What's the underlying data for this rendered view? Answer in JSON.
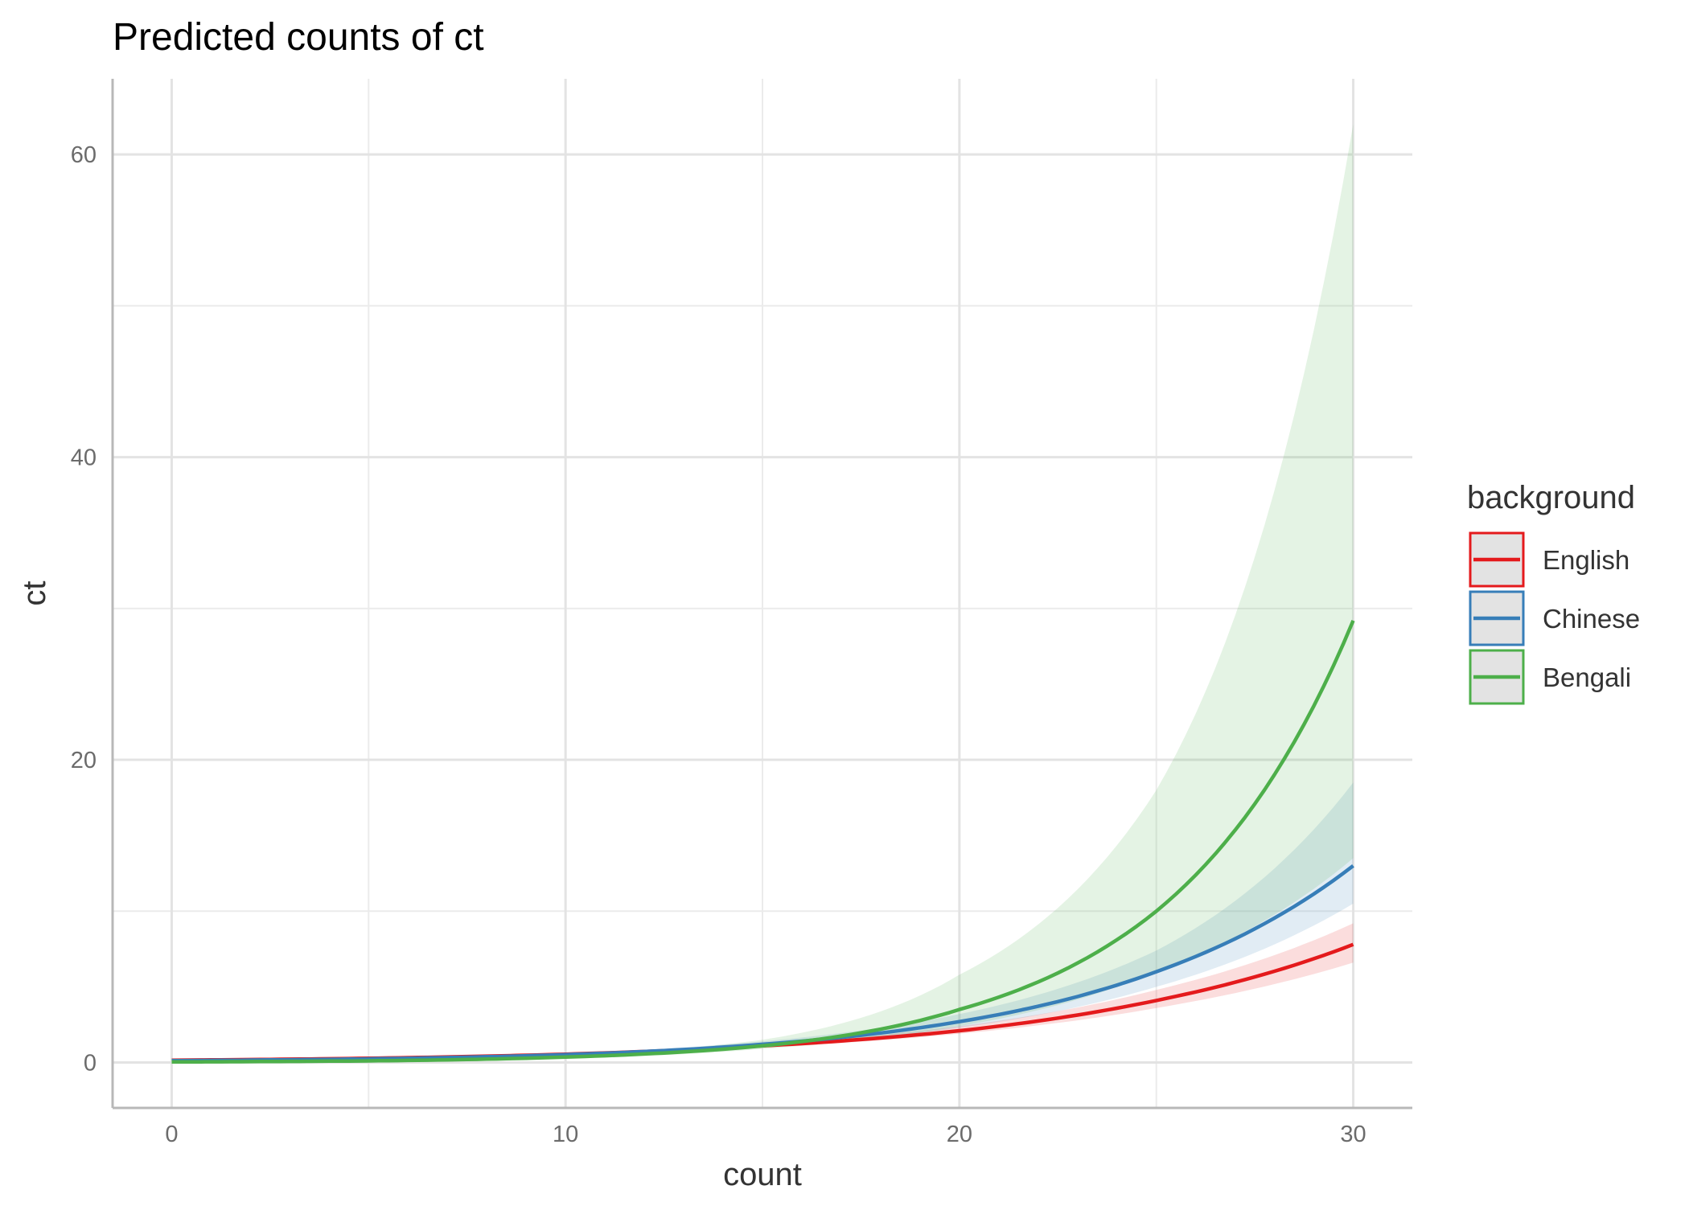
{
  "chart_data": {
    "type": "line",
    "title": "Predicted counts of ct",
    "xlabel": "count",
    "ylabel": "ct",
    "xlim": [
      -1.5,
      31.5
    ],
    "ylim": [
      -3,
      65
    ],
    "xticks": [
      0,
      10,
      20,
      30
    ],
    "yticks": [
      0,
      20,
      40,
      60
    ],
    "grid": true,
    "legend_title": "background",
    "legend_position": "right",
    "series": [
      {
        "name": "English",
        "color": "#E41A1C",
        "x": [
          0,
          5,
          10,
          15,
          20,
          25,
          30
        ],
        "y": [
          0.15,
          0.28,
          0.55,
          1.1,
          2.1,
          4.1,
          7.8
        ],
        "lower": [
          0.12,
          0.24,
          0.5,
          1.0,
          1.9,
          3.6,
          6.6
        ],
        "upper": [
          0.19,
          0.33,
          0.62,
          1.2,
          2.4,
          4.8,
          9.2
        ]
      },
      {
        "name": "Chinese",
        "color": "#377EB8",
        "x": [
          0,
          5,
          10,
          15,
          20,
          25,
          30
        ],
        "y": [
          0.12,
          0.24,
          0.52,
          1.2,
          2.7,
          6.0,
          13.0
        ],
        "lower": [
          0.09,
          0.19,
          0.44,
          1.05,
          2.3,
          5.0,
          10.5
        ],
        "upper": [
          0.16,
          0.3,
          0.6,
          1.4,
          3.2,
          7.4,
          18.5
        ]
      },
      {
        "name": "Bengali",
        "color": "#4DAF4A",
        "x": [
          0,
          5,
          10,
          15,
          20,
          25,
          30
        ],
        "y": [
          0.04,
          0.11,
          0.36,
          1.1,
          3.5,
          10.0,
          29.2
        ],
        "lower": [
          0.02,
          0.07,
          0.27,
          0.9,
          2.4,
          6.0,
          13.5
        ],
        "upper": [
          0.07,
          0.18,
          0.48,
          1.5,
          5.8,
          18.0,
          62.0
        ]
      }
    ]
  }
}
